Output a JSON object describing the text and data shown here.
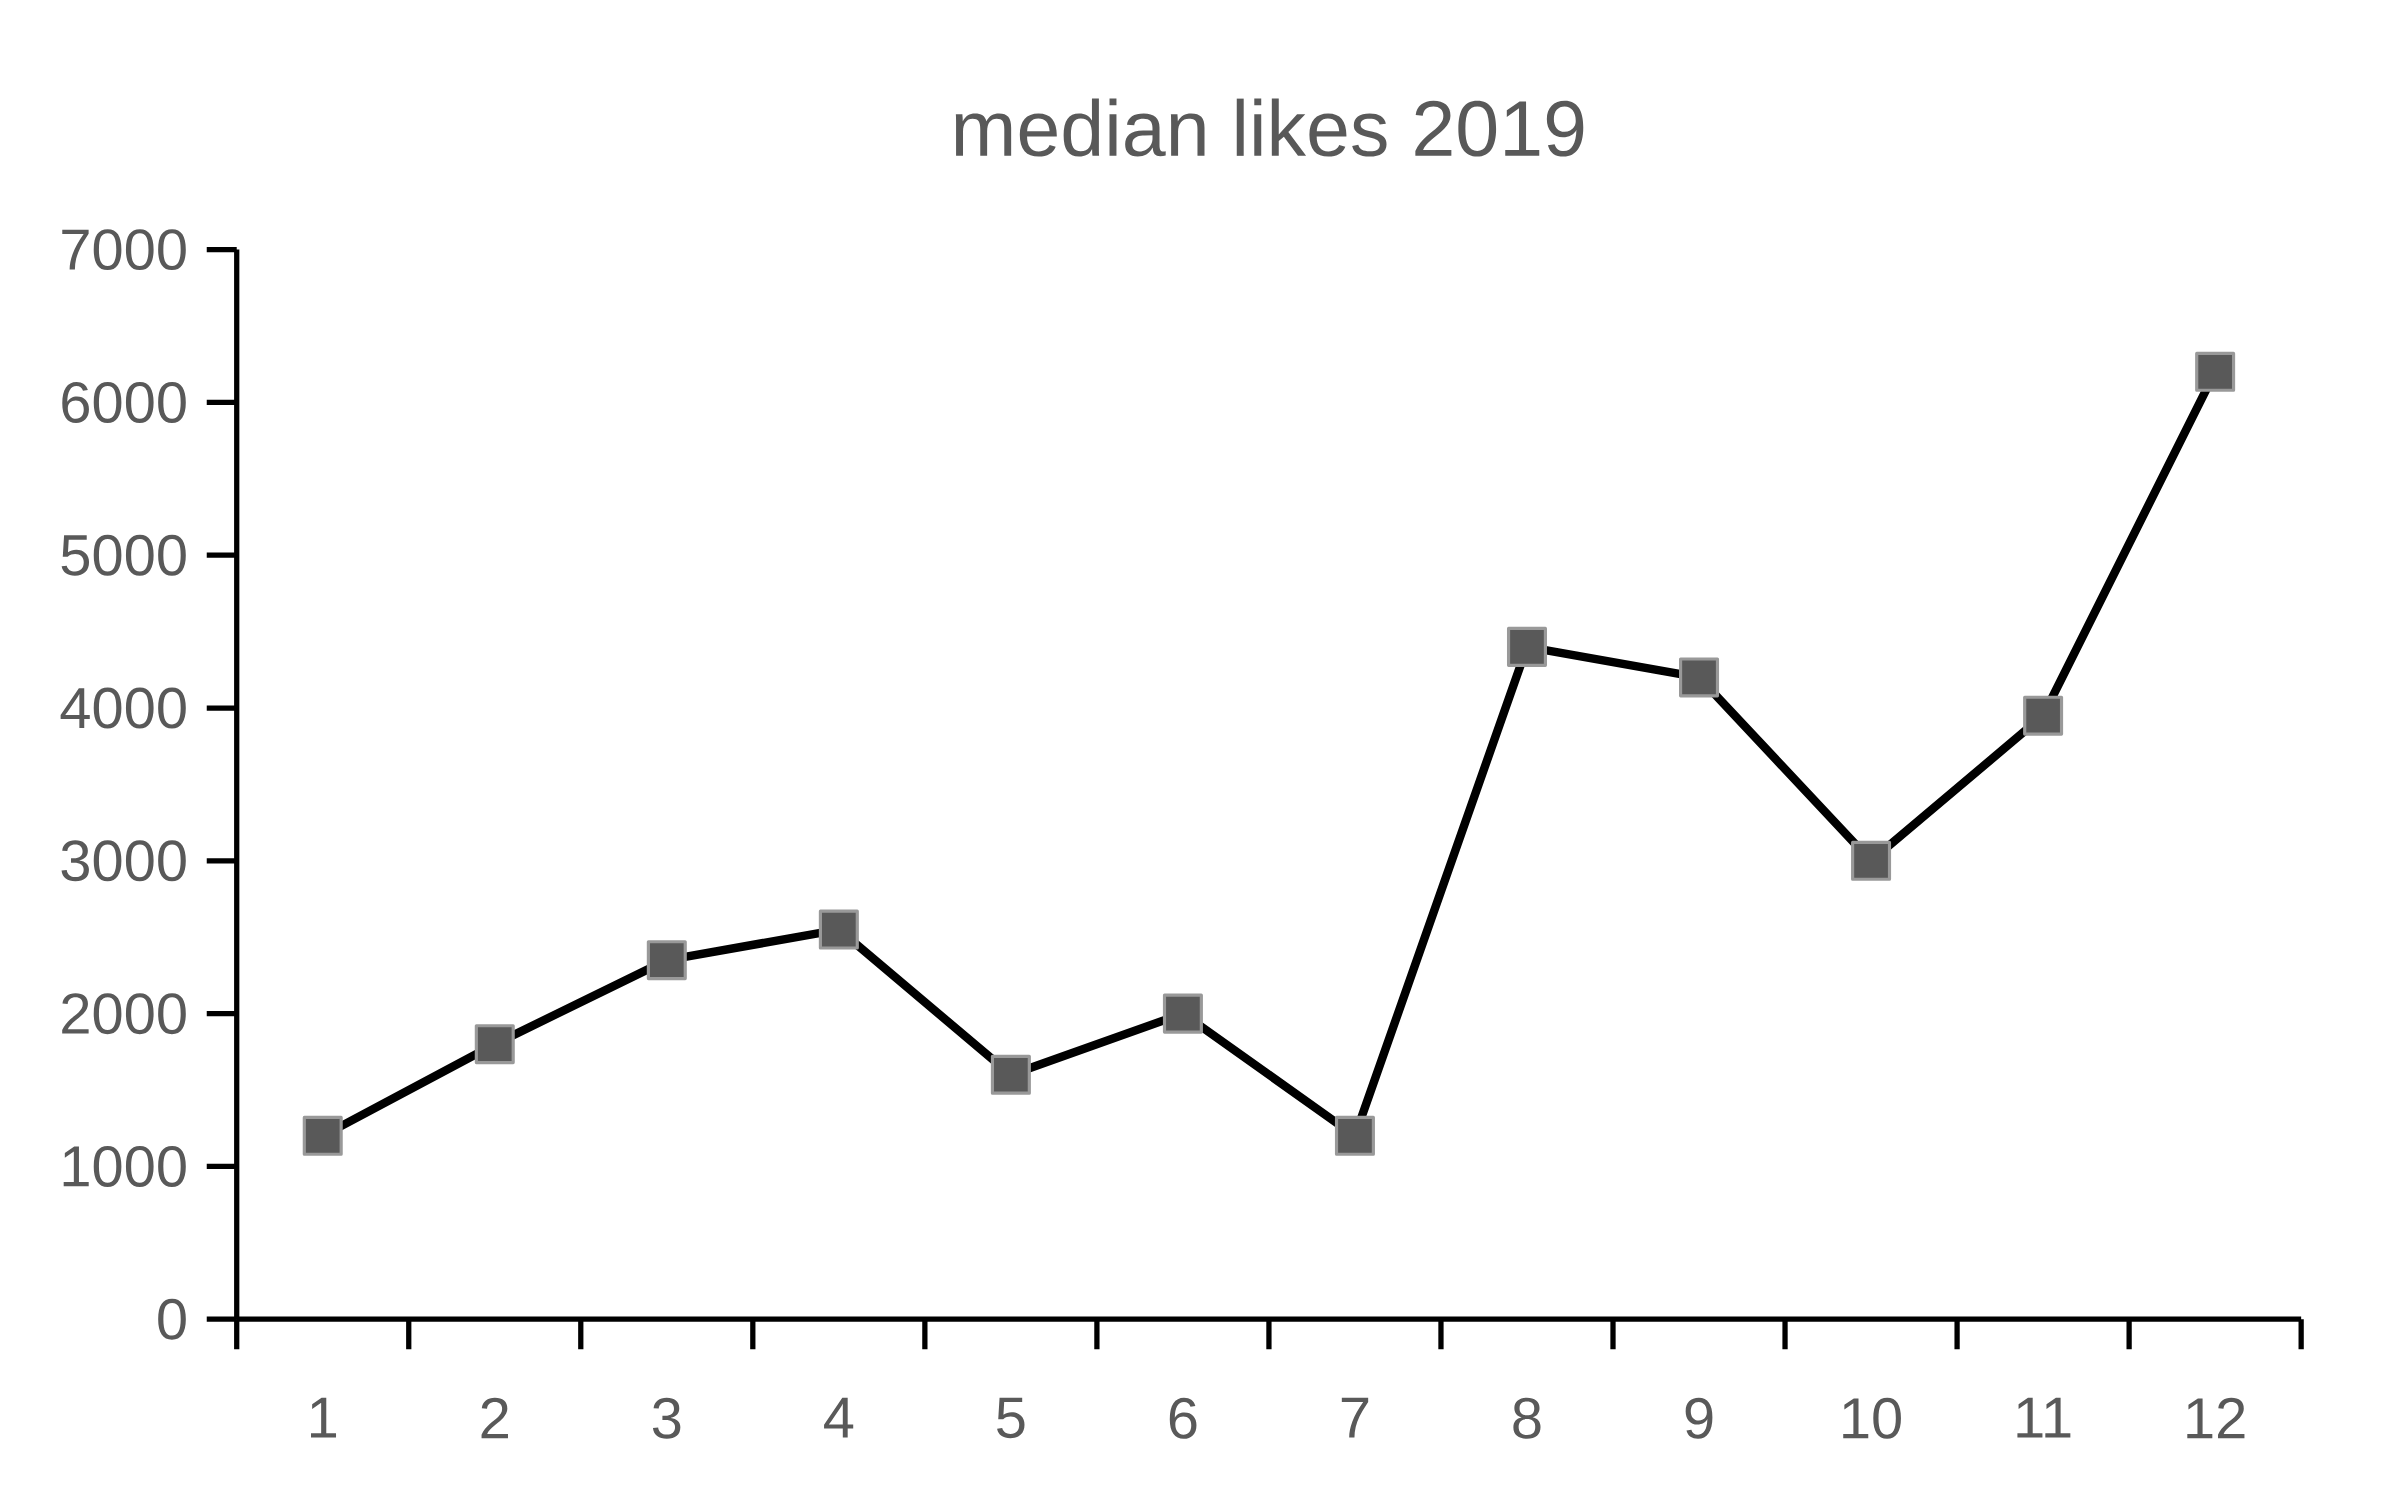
{
  "chart_data": {
    "type": "line",
    "title": "median likes 2019",
    "categories": [
      "1",
      "2",
      "3",
      "4",
      "5",
      "6",
      "7",
      "8",
      "9",
      "10",
      "11",
      "12"
    ],
    "series": [
      {
        "color": "#000000",
        "values": [
          1200,
          1800,
          2350,
          2550,
          1600,
          2000,
          1200,
          4400,
          4200,
          3000,
          3950,
          6200
        ]
      }
    ],
    "ylim": [
      0,
      7000
    ],
    "yticks": [
      0,
      1000,
      2000,
      3000,
      4000,
      5000,
      6000,
      7000
    ],
    "marker": "square",
    "line_style": "solid",
    "grid": false,
    "legend": false
  }
}
